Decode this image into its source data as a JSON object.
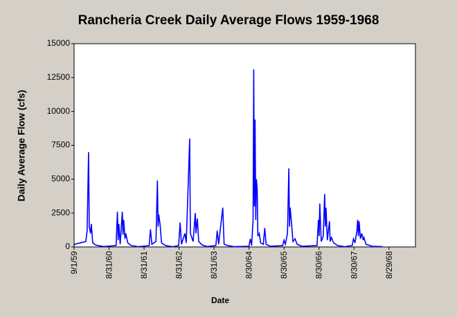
{
  "chart_data": {
    "type": "line",
    "title": "Rancheria Creek Daily Average Flows 1959-1968",
    "xlabel": "Date",
    "ylabel": "Daily Average Flow (cfs)",
    "x": [
      "1959-09-01",
      "1959-09-08",
      "1960-01-01",
      "1960-01-15",
      "1960-01-30",
      "1960-02-06",
      "1960-02-20",
      "1960-02-28",
      "1960-03-13",
      "1960-04-11",
      "1960-05-08",
      "1960-07-05",
      "1960-11-12",
      "1960-11-26",
      "1960-12-04",
      "1960-12-11",
      "1960-12-25",
      "1961-01-16",
      "1961-01-23",
      "1961-01-30",
      "1961-02-13",
      "1961-02-21",
      "1961-03-14",
      "1961-04-19",
      "1961-06-30",
      "1961-10-23",
      "1961-11-06",
      "1961-11-20",
      "1962-01-02",
      "1962-01-17",
      "1962-01-24",
      "1962-01-31",
      "1962-02-15",
      "1962-03-01",
      "1962-04-13",
      "1962-06-24",
      "1962-08-27",
      "1962-09-11",
      "1962-09-25",
      "1962-10-31",
      "1962-11-14",
      "1962-12-06",
      "1962-12-20",
      "1962-12-27",
      "1963-01-25",
      "1963-02-16",
      "1963-02-23",
      "1963-03-09",
      "1963-03-24",
      "1963-04-28",
      "1963-06-18",
      "1963-09-19",
      "1963-10-03",
      "1963-10-18",
      "1963-11-30",
      "1963-12-14",
      "1964-01-19",
      "1964-03-31",
      "1964-08-29",
      "1964-09-12",
      "1964-09-26",
      "1964-10-11",
      "1964-10-18",
      "1964-10-25",
      "1964-11-01",
      "1964-11-08",
      "1964-11-15",
      "1964-11-23",
      "1964-11-30",
      "1964-12-14",
      "1964-12-29",
      "1965-01-26",
      "1965-02-10",
      "1965-02-24",
      "1965-04-08",
      "1965-08-16",
      "1965-08-30",
      "1965-09-13",
      "1965-10-05",
      "1965-10-19",
      "1965-10-26",
      "1965-11-02",
      "1965-11-17",
      "1965-12-01",
      "1965-12-23",
      "1966-01-13",
      "1966-03-04",
      "1966-08-09",
      "1966-08-24",
      "1966-08-31",
      "1966-09-07",
      "1966-09-22",
      "1966-10-13",
      "1966-10-28",
      "1966-11-04",
      "1966-11-11",
      "1966-11-25",
      "1966-12-17",
      "1966-12-24",
      "1967-01-07",
      "1967-01-29",
      "1967-03-13",
      "1967-05-24",
      "1967-08-11",
      "1967-08-25",
      "1967-09-09",
      "1967-09-30",
      "1967-10-07",
      "1967-10-15",
      "1967-10-22",
      "1967-11-05",
      "1967-11-19",
      "1967-12-04",
      "1967-12-11",
      "1968-01-02",
      "1968-03-06",
      "1968-06-22"
    ],
    "series": [
      {
        "name": "Daily Average Flow",
        "color": "#0000ff",
        "values": [
          100,
          200,
          400,
          1200,
          7000,
          1500,
          1000,
          1700,
          300,
          150,
          100,
          30,
          100,
          2600,
          500,
          1700,
          200,
          2600,
          900,
          2000,
          600,
          1000,
          300,
          100,
          20,
          100,
          1300,
          200,
          400,
          4900,
          1500,
          2400,
          1600,
          300,
          100,
          20,
          100,
          1800,
          200,
          1000,
          300,
          5000,
          8000,
          1000,
          400,
          2500,
          1000,
          2100,
          400,
          150,
          30,
          100,
          1200,
          200,
          2900,
          200,
          100,
          20,
          50,
          600,
          100,
          2000,
          13100,
          3000,
          9400,
          2000,
          5000,
          4300,
          800,
          1000,
          300,
          200,
          1400,
          200,
          50,
          100,
          500,
          200,
          1000,
          5800,
          1500,
          2900,
          1700,
          400,
          600,
          200,
          50,
          100,
          2000,
          800,
          3200,
          400,
          800,
          3900,
          1500,
          2900,
          500,
          1900,
          400,
          700,
          300,
          100,
          20,
          100,
          600,
          300,
          1200,
          2000,
          800,
          1900,
          600,
          1000,
          500,
          700,
          200,
          50,
          20
        ]
      }
    ],
    "xlim": [
      "1959-09-01",
      "1969-06-01"
    ],
    "xticks": [
      {
        "value": "1959-09-01",
        "label": "9/1/59"
      },
      {
        "value": "1960-08-31",
        "label": "8/31/60"
      },
      {
        "value": "1961-08-31",
        "label": "8/31/61"
      },
      {
        "value": "1962-08-31",
        "label": "8/31/62"
      },
      {
        "value": "1963-08-31",
        "label": "8/31/63"
      },
      {
        "value": "1964-08-30",
        "label": "8/30/64"
      },
      {
        "value": "1965-08-30",
        "label": "8/30/65"
      },
      {
        "value": "1966-08-30",
        "label": "8/30/66"
      },
      {
        "value": "1967-08-30",
        "label": "8/30/67"
      },
      {
        "value": "1968-08-29",
        "label": "8/29/68"
      }
    ],
    "ylim": [
      0,
      15000
    ],
    "yticks": [
      0,
      2500,
      5000,
      7500,
      10000,
      12500,
      15000
    ]
  }
}
